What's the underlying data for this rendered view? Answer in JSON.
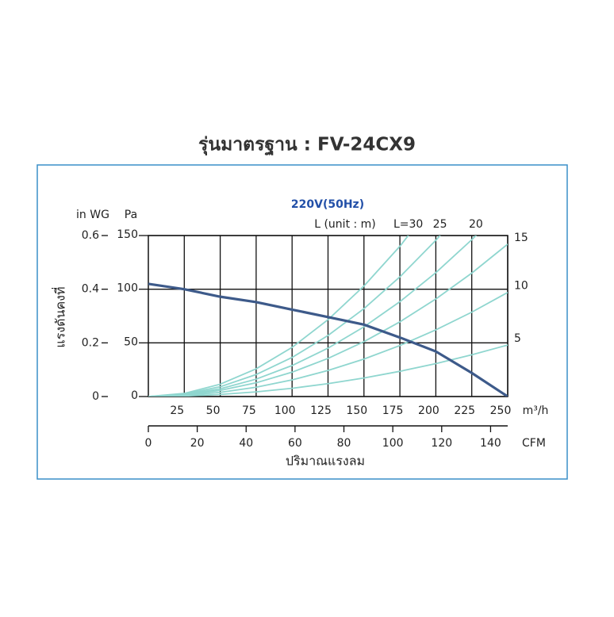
{
  "chart_data": {
    "type": "line",
    "title": "รุ่นมาตรฐาน : FV-24CX9",
    "subtitle": "220V(50Hz)",
    "x_label": "ปริมาณแรงลม",
    "y_label": "แรงดันคงที่",
    "x_unit": "m³/h",
    "x2_unit": "CFM",
    "y_unit": "Pa",
    "y2_unit": "in WG",
    "curve_note": "L (unit : m)",
    "x": [
      0,
      25,
      50,
      75,
      100,
      125,
      150,
      175,
      200,
      225,
      250
    ],
    "xlim": [
      0,
      250
    ],
    "xticks": [
      25,
      50,
      75,
      100,
      125,
      150,
      175,
      200,
      225,
      250
    ],
    "x2lim": [
      0,
      147
    ],
    "x2ticks": [
      0,
      20,
      40,
      60,
      80,
      100,
      120,
      140
    ],
    "ylim": [
      0,
      150
    ],
    "yticks": [
      0,
      50,
      100,
      150
    ],
    "y2lim": [
      0,
      0.6
    ],
    "y2ticks": [
      0,
      0.2,
      0.4,
      0.6
    ],
    "grid": true,
    "series": [
      {
        "color": "#3d5a8a",
        "values": [
          105,
          100,
          93,
          88,
          81,
          74,
          67,
          55,
          42,
          22,
          0
        ]
      }
    ],
    "system_curves": {
      "color": "#8fd6cf",
      "curves": [
        {
          "label": "L=30",
          "values": [
            0,
            2.9,
            11.5,
            25.8,
            45.8,
            71.6,
            103,
            140,
            183,
            null,
            null
          ]
        },
        {
          "label": "25",
          "values": [
            0,
            2.3,
            9.1,
            20.5,
            36.4,
            56.9,
            81.9,
            111.5,
            145.6,
            184,
            null
          ]
        },
        {
          "label": "20",
          "values": [
            0,
            1.8,
            7.2,
            16.2,
            28.9,
            45.1,
            64.9,
            88.4,
            115.4,
            146.1,
            180
          ]
        },
        {
          "label": "15",
          "values": [
            0,
            1.4,
            5.7,
            12.8,
            22.7,
            35.5,
            51.1,
            69.6,
            90.9,
            115,
            142
          ]
        },
        {
          "label": "10",
          "values": [
            0,
            0.97,
            3.9,
            8.7,
            15.5,
            24.3,
            34.9,
            47.5,
            62.1,
            78.6,
            97
          ]
        },
        {
          "label": "5",
          "values": [
            0,
            0.48,
            1.92,
            4.32,
            7.68,
            12,
            17.3,
            23.5,
            30.7,
            38.9,
            48
          ]
        }
      ]
    }
  }
}
